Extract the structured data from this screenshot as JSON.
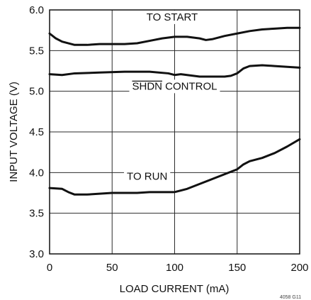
{
  "chart_data": {
    "type": "line",
    "title": "",
    "xlabel": "LOAD CURRENT (mA)",
    "ylabel": "INPUT VOLTAGE (V)",
    "xlim": [
      0,
      200
    ],
    "ylim": [
      3.0,
      6.0
    ],
    "x_ticks": [
      0,
      50,
      100,
      150,
      200
    ],
    "y_ticks": [
      3.0,
      3.5,
      4.0,
      4.5,
      5.0,
      5.5,
      6.0
    ],
    "x_tick_labels": [
      "0",
      "50",
      "100",
      "150",
      "200"
    ],
    "y_tick_labels": [
      "3.0",
      "3.5",
      "4.0",
      "4.5",
      "5.0",
      "5.5",
      "6.0"
    ],
    "grid": true,
    "legend": "none",
    "series": [
      {
        "name": "TO START",
        "x": [
          0,
          5,
          10,
          20,
          30,
          40,
          50,
          60,
          70,
          80,
          90,
          100,
          110,
          120,
          125,
          130,
          140,
          150,
          160,
          170,
          180,
          190,
          200
        ],
        "y": [
          5.71,
          5.65,
          5.61,
          5.57,
          5.57,
          5.58,
          5.58,
          5.58,
          5.59,
          5.62,
          5.65,
          5.67,
          5.67,
          5.65,
          5.63,
          5.64,
          5.68,
          5.71,
          5.74,
          5.76,
          5.77,
          5.78,
          5.78
        ]
      },
      {
        "name": "SHDN CONTROL",
        "x": [
          0,
          10,
          20,
          40,
          60,
          80,
          95,
          100,
          105,
          110,
          120,
          130,
          140,
          145,
          150,
          155,
          160,
          170,
          180,
          190,
          200
        ],
        "y": [
          5.21,
          5.2,
          5.22,
          5.23,
          5.24,
          5.24,
          5.22,
          5.2,
          5.21,
          5.2,
          5.18,
          5.18,
          5.18,
          5.19,
          5.22,
          5.28,
          5.31,
          5.32,
          5.31,
          5.3,
          5.29
        ]
      },
      {
        "name": "TO RUN",
        "x": [
          0,
          10,
          15,
          20,
          30,
          40,
          50,
          60,
          70,
          80,
          90,
          100,
          110,
          120,
          130,
          140,
          150,
          155,
          160,
          170,
          180,
          190,
          200
        ],
        "y": [
          3.81,
          3.8,
          3.76,
          3.73,
          3.73,
          3.74,
          3.75,
          3.75,
          3.75,
          3.76,
          3.76,
          3.76,
          3.8,
          3.86,
          3.92,
          3.98,
          4.04,
          4.1,
          4.14,
          4.18,
          4.24,
          4.32,
          4.41
        ]
      }
    ],
    "annotations": [
      {
        "text": "TO START",
        "series": "TO START",
        "x": 98,
        "y": 5.87
      },
      {
        "text": "SHDN CONTROL",
        "series": "SHDN CONTROL",
        "x": 100,
        "y": 5.02,
        "overline": "SHDN"
      },
      {
        "text": "TO RUN",
        "series": "TO RUN",
        "x": 78,
        "y": 3.91
      }
    ],
    "figure_id": "4058 G11",
    "colors": {
      "line": "#111111",
      "grid": "#2b2b2b",
      "text": "#111111",
      "background": "#ffffff"
    }
  }
}
